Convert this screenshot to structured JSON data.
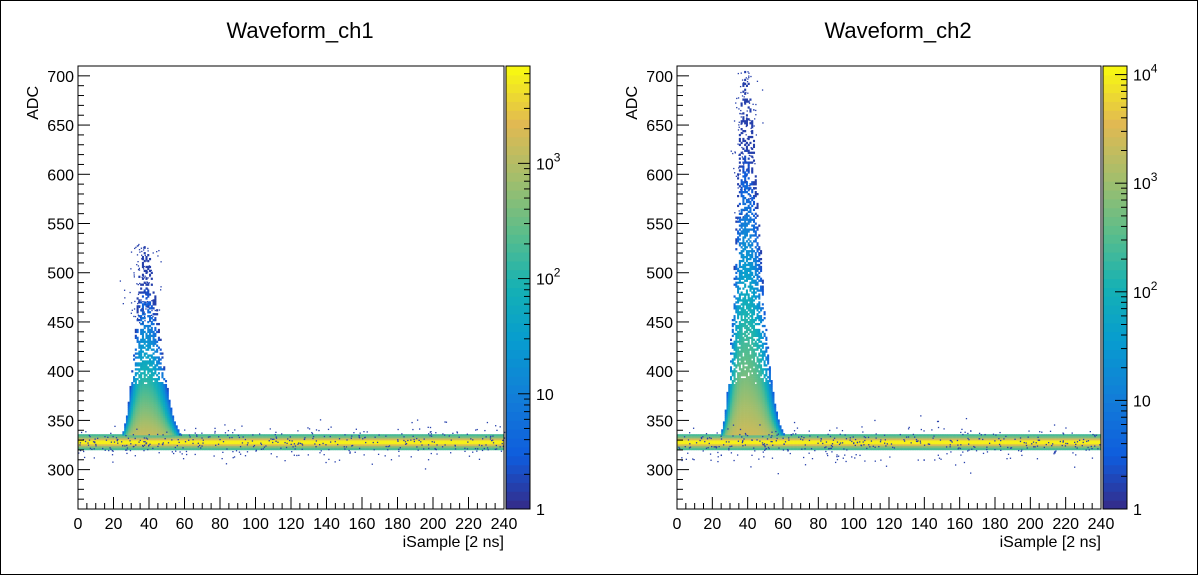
{
  "chart_data": [
    {
      "type": "heatmap",
      "title": "Waveform_ch1",
      "xlabel": "iSample [2 ns]",
      "ylabel": "ADC",
      "xlim": [
        0,
        240
      ],
      "ylim": [
        260,
        710
      ],
      "x_ticks": [
        0,
        20,
        40,
        60,
        80,
        100,
        120,
        140,
        160,
        180,
        200,
        220,
        240
      ],
      "y_ticks": [
        300,
        350,
        400,
        450,
        500,
        550,
        600,
        650,
        700
      ],
      "z_scale": "log",
      "z_range": [
        1,
        7000
      ],
      "z_tick_labels": [
        {
          "value": 1,
          "label": "1"
        },
        {
          "value": 10,
          "label": "10"
        },
        {
          "value": 100,
          "label": "10",
          "exp": "2"
        },
        {
          "value": 1000,
          "label": "10",
          "exp": "3"
        }
      ],
      "baseline_adc": 327,
      "pulse": {
        "peak_sample": 37,
        "peak_adc": 530,
        "width_samples": 14
      },
      "grid": false
    },
    {
      "type": "heatmap",
      "title": "Waveform_ch2",
      "xlabel": "iSample [2 ns]",
      "ylabel": "ADC",
      "xlim": [
        0,
        240
      ],
      "ylim": [
        260,
        710
      ],
      "x_ticks": [
        0,
        20,
        40,
        60,
        80,
        100,
        120,
        140,
        160,
        180,
        200,
        220,
        240
      ],
      "y_ticks": [
        300,
        350,
        400,
        450,
        500,
        550,
        600,
        650,
        700
      ],
      "z_scale": "log",
      "z_range": [
        1,
        12000
      ],
      "z_tick_labels": [
        {
          "value": 1,
          "label": "1"
        },
        {
          "value": 10,
          "label": "10"
        },
        {
          "value": 100,
          "label": "10",
          "exp": "2"
        },
        {
          "value": 1000,
          "label": "10",
          "exp": "3"
        },
        {
          "value": 10000,
          "label": "10",
          "exp": "4"
        }
      ],
      "baseline_adc": 327,
      "pulse": {
        "peak_sample": 38,
        "peak_adc": 705,
        "width_samples": 13
      },
      "grid": false
    }
  ]
}
